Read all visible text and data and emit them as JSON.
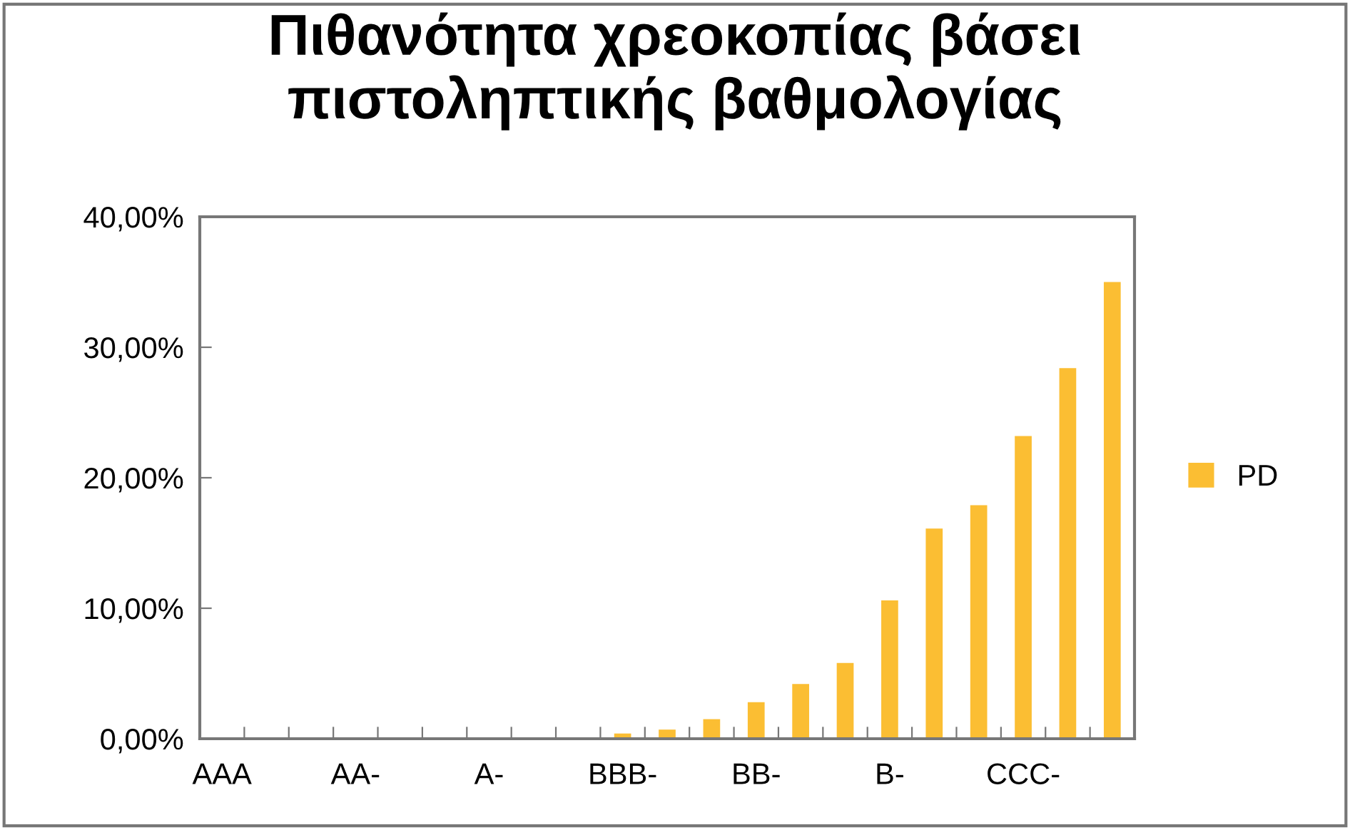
{
  "chart_data": {
    "type": "bar",
    "title": "Πιθανότητα χρεοκοπίας βάσει\nπιστοληπτικής βαθμολογίας",
    "categories": [
      "AAA",
      null,
      null,
      "AA-",
      null,
      null,
      "A-",
      null,
      null,
      "BBB-",
      null,
      null,
      "BB-",
      null,
      null,
      "B-",
      null,
      null,
      "CCC-",
      null,
      null
    ],
    "series": [
      {
        "name": "PD",
        "color": "#fbbe33",
        "values": [
          0,
          0,
          0,
          0,
          0,
          0,
          0,
          0,
          0,
          0.4,
          0.7,
          1.5,
          2.8,
          4.2,
          5.8,
          10.6,
          16.1,
          17.9,
          23.2,
          28.4,
          35.0
        ]
      }
    ],
    "ylim": [
      0,
      40
    ],
    "yticks": [
      {
        "value": 0,
        "label": "0,00%"
      },
      {
        "value": 10,
        "label": "10,00%"
      },
      {
        "value": 20,
        "label": "20,00%"
      },
      {
        "value": 30,
        "label": "30,00%"
      },
      {
        "value": 40,
        "label": "40,00%"
      }
    ],
    "grid": false,
    "legend": "right"
  }
}
